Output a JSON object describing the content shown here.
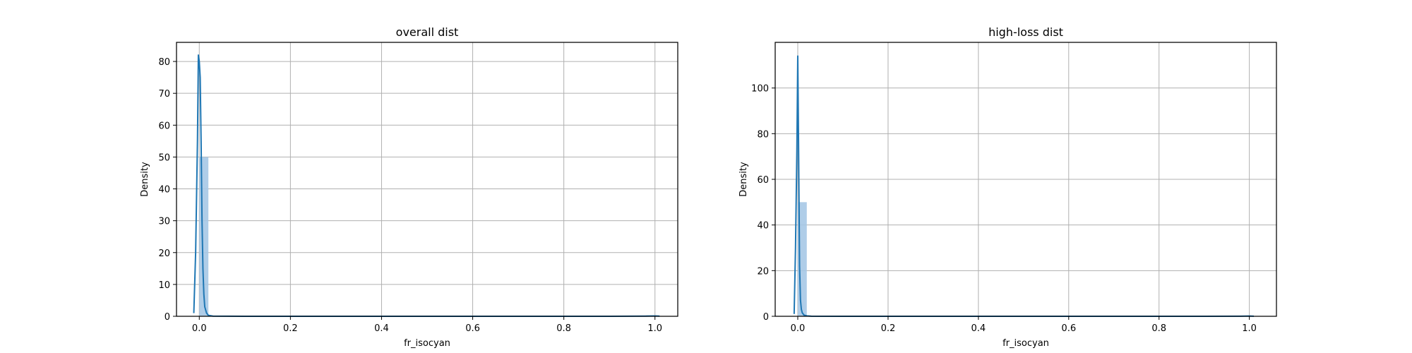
{
  "chart_data": [
    {
      "type": "histogram",
      "title": "overall dist",
      "xlabel": "fr_isocyan",
      "ylabel": "Density",
      "xlim": [
        -0.05,
        1.05
      ],
      "ylim": [
        0,
        86
      ],
      "xticks": [
        0.0,
        0.2,
        0.4,
        0.6,
        0.8,
        1.0
      ],
      "xtick_labels": [
        "0.0",
        "0.2",
        "0.4",
        "0.6",
        "0.8",
        "1.0"
      ],
      "yticks": [
        0,
        10,
        20,
        30,
        40,
        50,
        60,
        70,
        80
      ],
      "ytick_labels": [
        "0",
        "10",
        "20",
        "30",
        "40",
        "50",
        "60",
        "70",
        "80"
      ],
      "grid": true,
      "bins": [
        {
          "x0": 0.0,
          "x1": 0.02,
          "density": 50.0
        },
        {
          "x0": 0.98,
          "x1": 1.0,
          "density": 0.3
        }
      ],
      "kde": {
        "x": [
          -0.012,
          -0.008,
          -0.004,
          -0.002,
          0.0,
          0.002,
          0.004,
          0.006,
          0.008,
          0.01,
          0.012,
          0.016,
          0.02,
          0.03,
          0.1,
          0.3,
          0.5,
          0.7,
          0.9,
          0.98,
          1.0,
          1.01
        ],
        "y": [
          1,
          20,
          55,
          82,
          80,
          75,
          55,
          30,
          15,
          7,
          3,
          1,
          0.3,
          0.05,
          0,
          0,
          0,
          0,
          0,
          0.05,
          0.1,
          0.05
        ]
      },
      "colors": {
        "kde": "#1f77b4",
        "bars": "#a6c8e6"
      }
    },
    {
      "type": "histogram",
      "title": "high-loss dist",
      "xlabel": "fr_isocyan",
      "ylabel": "Density",
      "xlim": [
        -0.05,
        1.06
      ],
      "ylim": [
        0,
        120
      ],
      "xticks": [
        0.0,
        0.2,
        0.4,
        0.6,
        0.8,
        1.0
      ],
      "xtick_labels": [
        "0.0",
        "0.2",
        "0.4",
        "0.6",
        "0.8",
        "1.0"
      ],
      "yticks": [
        0,
        20,
        40,
        60,
        80,
        100
      ],
      "ytick_labels": [
        "0",
        "20",
        "40",
        "60",
        "80",
        "100"
      ],
      "grid": true,
      "bins": [
        {
          "x0": 0.0,
          "x1": 0.02,
          "density": 50.0
        },
        {
          "x0": 0.98,
          "x1": 1.0,
          "density": 0.3
        }
      ],
      "kde": {
        "x": [
          -0.008,
          -0.005,
          -0.002,
          0.0,
          0.002,
          0.004,
          0.006,
          0.008,
          0.01,
          0.014,
          0.02,
          0.03,
          0.1,
          0.3,
          0.5,
          0.7,
          0.9,
          0.98,
          1.0,
          1.01
        ],
        "y": [
          1,
          30,
          72,
          114,
          70,
          22,
          7,
          3,
          1.5,
          0.5,
          0.2,
          0.05,
          0,
          0,
          0,
          0,
          0,
          0.05,
          0.1,
          0.05
        ]
      },
      "colors": {
        "kde": "#1f77b4",
        "bars": "#a6c8e6"
      }
    }
  ]
}
